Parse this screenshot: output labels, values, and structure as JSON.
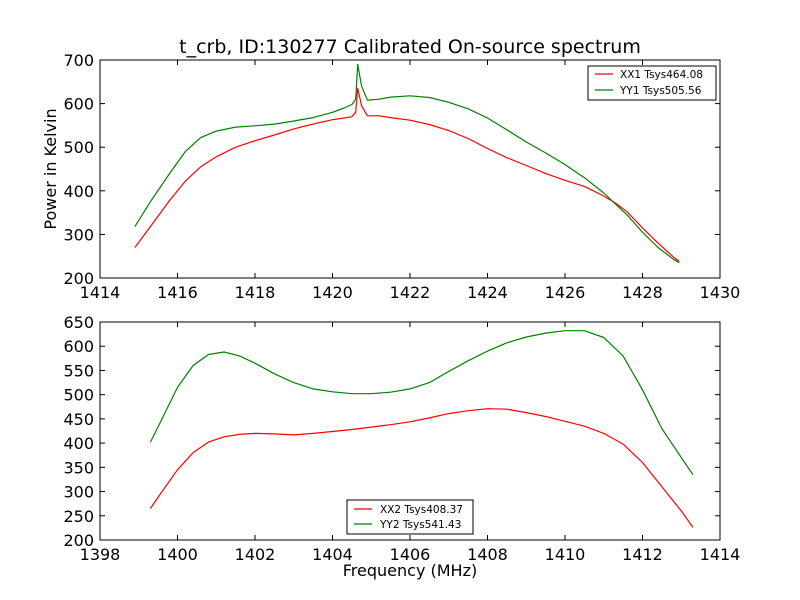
{
  "chart_data": [
    {
      "type": "line",
      "title": "t_crb, ID:130277 Calibrated On-source spectrum",
      "xlabel": "",
      "ylabel": "Power in Kelvin",
      "xlim": [
        1414,
        1430
      ],
      "ylim": [
        200,
        700
      ],
      "xticks": [
        1414,
        1416,
        1418,
        1420,
        1422,
        1424,
        1426,
        1428,
        1430
      ],
      "yticks": [
        200,
        300,
        400,
        500,
        600,
        700
      ],
      "grid": false,
      "legend_position": "top-right",
      "series": [
        {
          "name": "XX1 Tsys464.08",
          "color": "#ff0000",
          "x": [
            1414.9,
            1415.3,
            1415.8,
            1416.2,
            1416.6,
            1417.0,
            1417.5,
            1418.0,
            1418.5,
            1419.0,
            1419.5,
            1420.0,
            1420.3,
            1420.5,
            1420.6,
            1420.65,
            1420.75,
            1420.9,
            1421.2,
            1421.5,
            1422.0,
            1422.5,
            1423.0,
            1423.5,
            1424.0,
            1424.5,
            1425.0,
            1425.5,
            1426.0,
            1426.5,
            1427.0,
            1427.3,
            1427.6,
            1428.0,
            1428.4,
            1428.8,
            1428.95
          ],
          "y": [
            270,
            318,
            378,
            422,
            455,
            478,
            500,
            515,
            528,
            542,
            553,
            563,
            567,
            570,
            580,
            635,
            595,
            572,
            572,
            568,
            562,
            552,
            538,
            520,
            497,
            476,
            458,
            440,
            424,
            410,
            388,
            372,
            352,
            315,
            280,
            248,
            238
          ]
        },
        {
          "name": "YY1 Tsys505.56",
          "color": "#008000",
          "x": [
            1414.9,
            1415.3,
            1415.8,
            1416.2,
            1416.6,
            1417.0,
            1417.5,
            1418.0,
            1418.5,
            1419.0,
            1419.5,
            1420.0,
            1420.3,
            1420.5,
            1420.6,
            1420.65,
            1420.75,
            1420.9,
            1421.2,
            1421.5,
            1422.0,
            1422.5,
            1423.0,
            1423.5,
            1424.0,
            1424.5,
            1425.0,
            1425.5,
            1426.0,
            1426.5,
            1427.0,
            1427.3,
            1427.6,
            1428.0,
            1428.4,
            1428.8,
            1428.95
          ],
          "y": [
            318,
            375,
            440,
            490,
            522,
            537,
            546,
            549,
            553,
            560,
            568,
            580,
            590,
            598,
            610,
            690,
            640,
            608,
            610,
            615,
            618,
            614,
            603,
            588,
            567,
            540,
            512,
            487,
            460,
            430,
            395,
            370,
            345,
            305,
            270,
            243,
            235
          ]
        }
      ]
    },
    {
      "type": "line",
      "title": "",
      "xlabel": "Frequency (MHz)",
      "ylabel": "",
      "xlim": [
        1398,
        1414
      ],
      "ylim": [
        200,
        650
      ],
      "xticks": [
        1398,
        1400,
        1402,
        1404,
        1406,
        1408,
        1410,
        1412,
        1414
      ],
      "yticks": [
        200,
        250,
        300,
        350,
        400,
        450,
        500,
        550,
        600,
        650
      ],
      "grid": false,
      "legend_position": "bottom-center",
      "series": [
        {
          "name": "XX2 Tsys408.37",
          "color": "#ff0000",
          "x": [
            1399.3,
            1399.6,
            1400.0,
            1400.4,
            1400.8,
            1401.2,
            1401.6,
            1402.0,
            1402.5,
            1403.0,
            1403.5,
            1404.0,
            1404.5,
            1405.0,
            1405.5,
            1406.0,
            1406.5,
            1407.0,
            1407.5,
            1408.0,
            1408.5,
            1409.0,
            1409.5,
            1410.0,
            1410.5,
            1411.0,
            1411.5,
            1412.0,
            1412.5,
            1413.0,
            1413.3
          ],
          "y": [
            265,
            300,
            345,
            380,
            402,
            413,
            418,
            420,
            419,
            417,
            420,
            424,
            428,
            433,
            438,
            444,
            452,
            461,
            467,
            471,
            470,
            463,
            455,
            445,
            435,
            420,
            398,
            360,
            310,
            260,
            226
          ]
        },
        {
          "name": "YY2 Tsys541.43",
          "color": "#008000",
          "x": [
            1399.3,
            1399.6,
            1400.0,
            1400.4,
            1400.8,
            1401.2,
            1401.6,
            1402.0,
            1402.5,
            1403.0,
            1403.5,
            1404.0,
            1404.5,
            1405.0,
            1405.5,
            1406.0,
            1406.5,
            1407.0,
            1407.5,
            1408.0,
            1408.5,
            1409.0,
            1409.5,
            1410.0,
            1410.5,
            1411.0,
            1411.5,
            1412.0,
            1412.5,
            1413.0,
            1413.3
          ],
          "y": [
            402,
            450,
            515,
            560,
            583,
            588,
            580,
            565,
            543,
            525,
            512,
            506,
            502,
            502,
            505,
            512,
            525,
            548,
            570,
            590,
            607,
            619,
            627,
            632,
            632,
            618,
            580,
            510,
            430,
            370,
            335
          ]
        }
      ]
    }
  ]
}
